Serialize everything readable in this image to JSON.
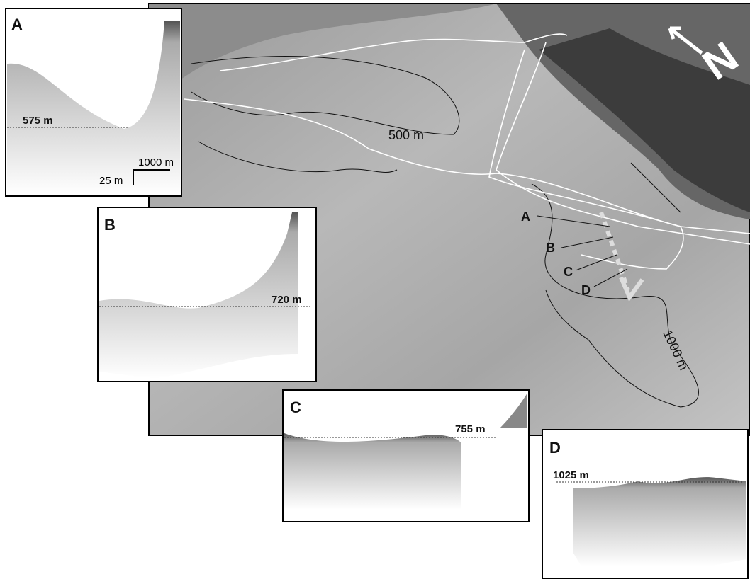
{
  "map": {
    "contour_labels": [
      "500 m",
      "1000 m"
    ],
    "profile_markers": [
      "A",
      "B",
      "C",
      "D"
    ],
    "north": "N"
  },
  "panels": [
    {
      "label": "A",
      "depth": "575 m",
      "scale_x": "1000 m",
      "scale_y": "25 m"
    },
    {
      "label": "B",
      "depth": "720 m"
    },
    {
      "label": "C",
      "depth": "755 m"
    },
    {
      "label": "D",
      "depth": "1025 m"
    }
  ]
}
